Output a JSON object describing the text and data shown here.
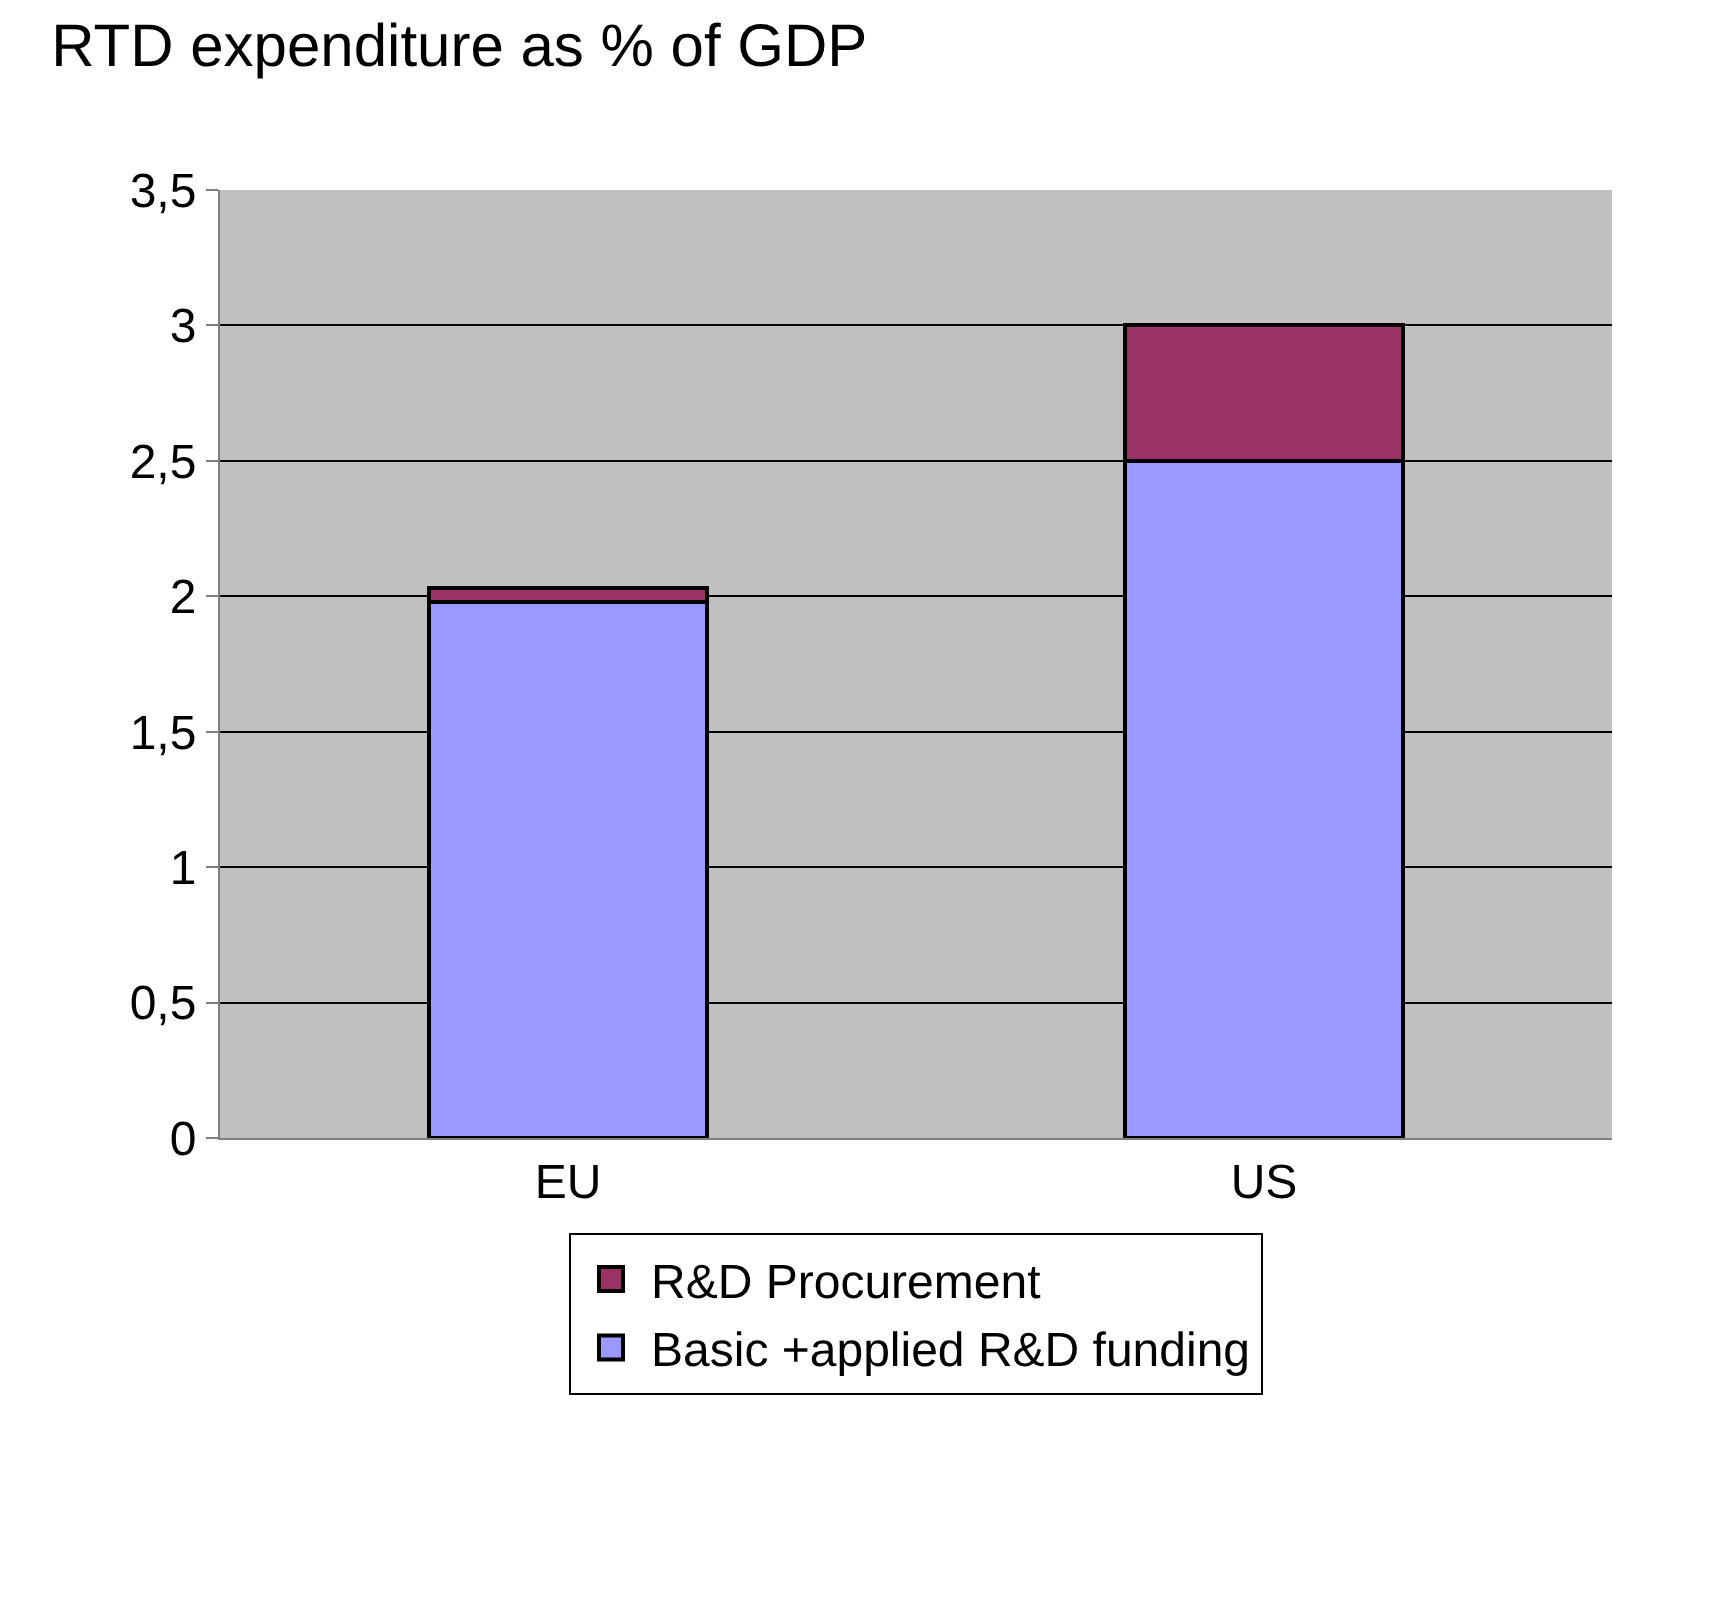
{
  "chart_data": {
    "type": "bar",
    "title": "RTD expenditure as % of GDP",
    "categories": [
      "EU",
      "US"
    ],
    "stacked": true,
    "series": [
      {
        "name": "Basic +applied R&D funding",
        "color": "#9999ff",
        "values": [
          1.98,
          2.5
        ]
      },
      {
        "name": "R&D Procurement",
        "color": "#993366",
        "values": [
          0.05,
          0.5
        ]
      }
    ],
    "ylim": [
      0,
      3.5
    ],
    "yticks": [
      0,
      {
        "value": 0.5,
        "label": "0,5"
      },
      1,
      {
        "value": 1.5,
        "label": "1,5"
      },
      2,
      {
        "value": 2.5,
        "label": "2,5"
      },
      3,
      {
        "value": 3.5,
        "label": "3,5"
      }
    ],
    "grid": "y",
    "legend": "bottom"
  }
}
